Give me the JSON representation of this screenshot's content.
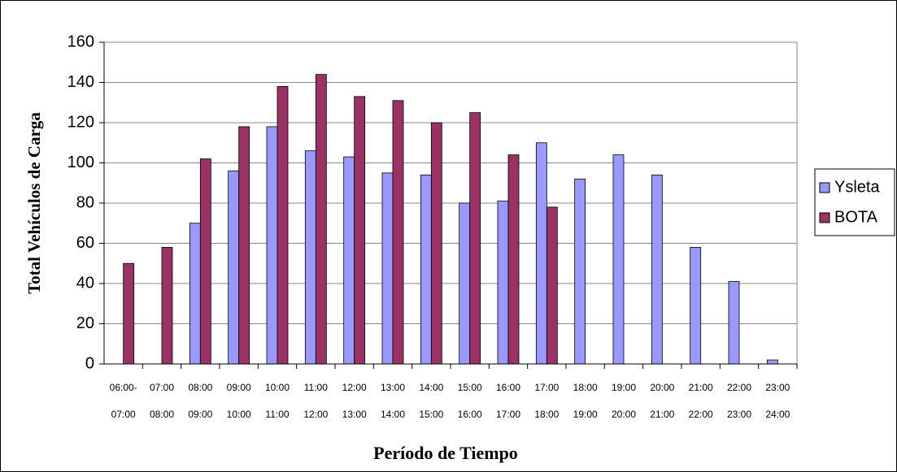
{
  "chart_data": {
    "type": "bar",
    "xlabel": "Período de Tiempo",
    "ylabel": "Total Vehículos de Carga",
    "categories": [
      [
        "06:00-",
        "07:00"
      ],
      [
        "07:00",
        "08:00"
      ],
      [
        "08:00",
        "09:00"
      ],
      [
        "09:00",
        "10:00"
      ],
      [
        "10:00",
        "11:00"
      ],
      [
        "11:00",
        "12:00"
      ],
      [
        "12:00",
        "13:00"
      ],
      [
        "13:00",
        "14:00"
      ],
      [
        "14:00",
        "15:00"
      ],
      [
        "15:00",
        "16:00"
      ],
      [
        "16:00",
        "17:00"
      ],
      [
        "17:00",
        "18:00"
      ],
      [
        "18:00",
        "19:00"
      ],
      [
        "19:00",
        "20:00"
      ],
      [
        "20:00",
        "21:00"
      ],
      [
        "21:00",
        "22:00"
      ],
      [
        "22:00",
        "23:00"
      ],
      [
        "23:00",
        "24:00"
      ]
    ],
    "series": [
      {
        "name": "Ysleta",
        "color": "#9999ff",
        "values": [
          null,
          null,
          70,
          96,
          118,
          106,
          103,
          95,
          94,
          80,
          81,
          110,
          92,
          104,
          94,
          58,
          41,
          2
        ]
      },
      {
        "name": "BOTA",
        "color": "#993366",
        "values": [
          50,
          58,
          102,
          118,
          138,
          144,
          133,
          131,
          120,
          125,
          104,
          78,
          null,
          null,
          null,
          null,
          null,
          null
        ]
      }
    ],
    "ylim": [
      0,
      160
    ],
    "yticks": [
      0,
      20,
      40,
      60,
      80,
      100,
      120,
      140,
      160
    ],
    "grid": true,
    "legend": "right"
  }
}
